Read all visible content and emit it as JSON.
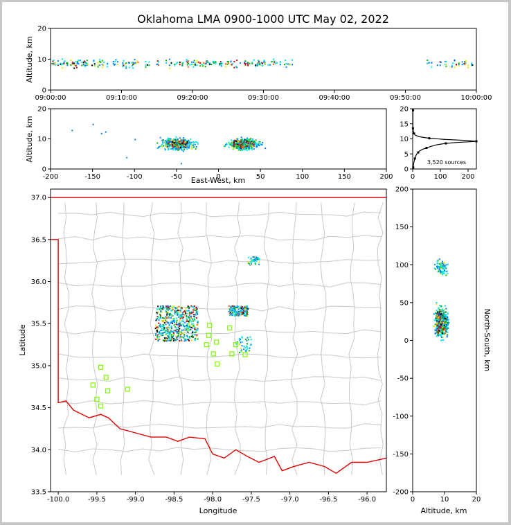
{
  "title": "Oklahoma LMA 0900-1000 UTC May 02, 2022",
  "colors": {
    "density": [
      "#00e6e6",
      "#0080ff",
      "#00b000",
      "#e6e600",
      "#ff6000",
      "#d00000",
      "#000000"
    ],
    "state_border": "#e00000",
    "county_lines": "#c8c8c8",
    "stations": "#7cfc00"
  },
  "annotation": "3,520 sources",
  "chart_data": [
    {
      "id": "time_height",
      "type": "heatmap",
      "xlabel": "",
      "ylabel": "Altitude, km",
      "xticks": [
        "09:00:00",
        "09:10:00",
        "09:20:00",
        "09:30:00",
        "09:40:00",
        "09:50:00",
        "10:00:00"
      ],
      "xlim_minutes": [
        0,
        60
      ],
      "ylim": [
        0,
        20
      ],
      "yticks": [
        0,
        10,
        20
      ],
      "activity_periods_minutes": [
        [
          0,
          34
        ],
        [
          53,
          60
        ]
      ],
      "typical_altitude_km": [
        6,
        11
      ]
    },
    {
      "id": "east_west_height",
      "type": "heatmap",
      "xlabel": "East-West, km",
      "ylabel": "Altitude, km",
      "xlim": [
        -200,
        200
      ],
      "xticks": [
        -200,
        -150,
        -100,
        -50,
        0,
        50,
        100,
        150,
        200
      ],
      "ylim": [
        0,
        20
      ],
      "yticks": [
        0,
        10,
        20
      ],
      "clusters_km": [
        [
          -75,
          -25
        ],
        [
          5,
          55
        ]
      ]
    },
    {
      "id": "altitude_histogram",
      "type": "line",
      "xlim": [
        0,
        230
      ],
      "xticks": [
        0,
        100,
        200
      ],
      "ylim": [
        0,
        20
      ],
      "yticks": [
        0,
        5,
        10,
        15,
        20
      ],
      "x": [
        2,
        3,
        5,
        8,
        12,
        15,
        20,
        25,
        35,
        50,
        65,
        85,
        120,
        160,
        200,
        230,
        190,
        120,
        60,
        25,
        10,
        5,
        3,
        2,
        1,
        1,
        1,
        1
      ],
      "y": [
        0.5,
        1.5,
        2.5,
        3.5,
        4.5,
        5.0,
        5.5,
        6.0,
        6.5,
        7.0,
        7.5,
        8.0,
        8.5,
        8.8,
        9.0,
        9.2,
        9.5,
        9.8,
        10.2,
        10.7,
        11.2,
        11.8,
        12.3,
        12.7,
        13.5,
        15,
        17,
        19.5
      ],
      "total_sources": 3520
    },
    {
      "id": "plan_view",
      "type": "heatmap",
      "xlabel": "Longitude",
      "ylabel": "Latitude",
      "xlim": [
        -100.1,
        -95.75
      ],
      "xticks": [
        -100.0,
        -99.5,
        -99.0,
        -98.5,
        -98.0,
        -97.5,
        -97.0,
        -96.5,
        -96.0
      ],
      "xtick_labels": [
        "-100.0",
        "-99.5",
        "-99.0",
        "-98.5",
        "-98.0",
        "-97.5",
        "-97.0",
        "-96.5",
        "-96.0"
      ],
      "ylim": [
        33.5,
        37.1
      ],
      "yticks": [
        33.5,
        34.0,
        34.5,
        35.0,
        35.5,
        36.0,
        36.5,
        37.0
      ],
      "ytick_labels": [
        "33.5",
        "34.0",
        "34.5",
        "35.0",
        "35.5",
        "36.0",
        "36.5",
        "37.0"
      ],
      "stations": [
        [
          -99.55,
          34.77
        ],
        [
          -99.45,
          34.98
        ],
        [
          -99.38,
          34.86
        ],
        [
          -99.5,
          34.6
        ],
        [
          -99.45,
          34.52
        ],
        [
          -99.36,
          34.7
        ],
        [
          -99.1,
          34.72
        ],
        [
          -98.04,
          35.48
        ],
        [
          -98.05,
          35.36
        ],
        [
          -98.08,
          35.25
        ],
        [
          -97.95,
          35.28
        ],
        [
          -97.99,
          35.14
        ],
        [
          -97.94,
          35.02
        ],
        [
          -97.78,
          35.45
        ],
        [
          -97.7,
          35.25
        ],
        [
          -97.75,
          35.14
        ],
        [
          -97.58,
          35.13
        ]
      ],
      "source_regions": [
        {
          "lon": [
            -98.75,
            -98.2
          ],
          "lat": [
            35.3,
            35.72
          ]
        },
        {
          "lon": [
            -97.8,
            -97.55
          ],
          "lat": [
            35.6,
            35.72
          ]
        },
        {
          "lon": [
            -97.55,
            -97.4
          ],
          "lat": [
            36.2,
            36.3
          ]
        },
        {
          "lon": [
            -97.7,
            -97.5
          ],
          "lat": [
            35.15,
            35.35
          ]
        }
      ]
    },
    {
      "id": "north_south_height",
      "type": "heatmap",
      "xlabel": "Altitude, km",
      "ylabel": "North-South, km",
      "xlim": [
        0,
        20
      ],
      "xticks": [
        0,
        10,
        20
      ],
      "ylim": [
        -200,
        200
      ],
      "yticks": [
        -200,
        -150,
        -100,
        -50,
        0,
        50,
        100,
        150,
        200
      ],
      "clusters_km": [
        [
          0,
          50
        ],
        [
          85,
          110
        ]
      ]
    }
  ]
}
